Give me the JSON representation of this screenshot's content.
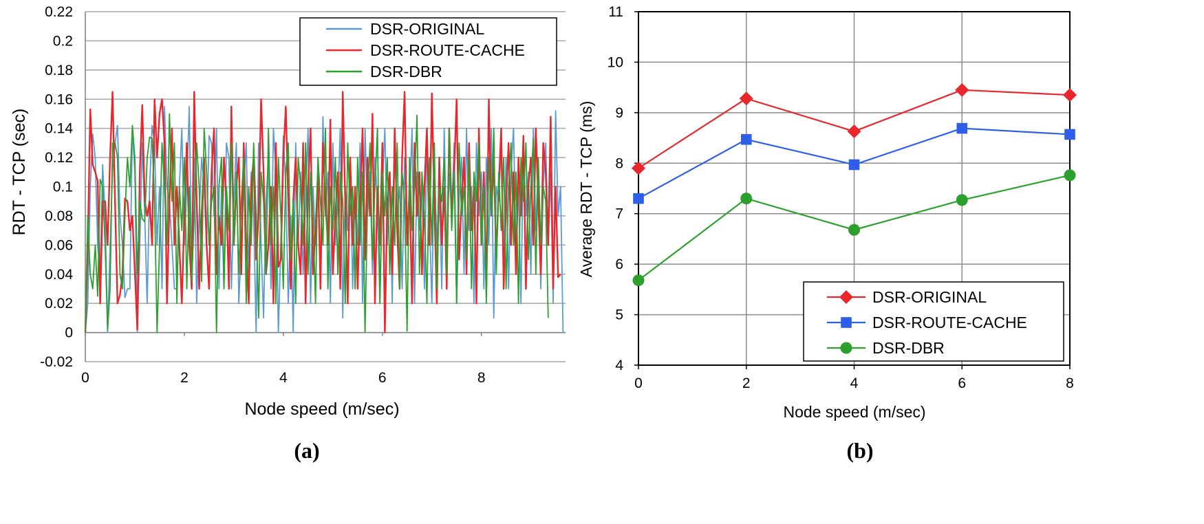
{
  "chart_data": [
    {
      "type": "line",
      "caption": "(a)",
      "xlabel": "Node speed (m/sec)",
      "ylabel": "RDT - TCP (sec)",
      "xlim": [
        0,
        9.7
      ],
      "ylim": [
        -0.02,
        0.22
      ],
      "x_ticks": [
        "0",
        "2",
        "4",
        "6",
        "8"
      ],
      "y_ticks": [
        "-0.02",
        "0",
        "0.02",
        "0.04",
        "0.06",
        "0.08",
        "0.1",
        "0.12",
        "0.14",
        "0.16",
        "0.18",
        "0.2",
        "0.22"
      ],
      "grid": "horizontal",
      "legend_position": "top-right",
      "series": [
        {
          "name": "DSR-ORIGINAL",
          "color": "#5b9bd5",
          "x_start": 0,
          "x_step": 0.05,
          "values": [
            0.0,
            0.02,
            0.1,
            0.136,
            0.12,
            0.06,
            0.04,
            0.115,
            0.08,
            0.0,
            0.06,
            0.11,
            0.13,
            0.142,
            0.08,
            0.06,
            0.024,
            0.03,
            0.03,
            0.14,
            0.11,
            0.0,
            0.06,
            0.13,
            0.08,
            0.02,
            0.1,
            0.142,
            0.13,
            0.06,
            0.1,
            0.03,
            0.155,
            0.1,
            0.09,
            0.06,
            0.03,
            0.03,
            0.1,
            0.14,
            0.06,
            0.1,
            0.155,
            0.04,
            0.12,
            0.02,
            0.08,
            0.12,
            0.1,
            0.06,
            0.135,
            0.13,
            0.08,
            0.14,
            0.03,
            0.1,
            0.03,
            0.13,
            0.12,
            0.03,
            0.09,
            0.13,
            0.02,
            0.06,
            0.1,
            0.13,
            0.04,
            0.11,
            0.08,
            0.0,
            0.13,
            0.06,
            0.01,
            0.09,
            0.12,
            0.03,
            0.14,
            0.11,
            0.0,
            0.06,
            0.135,
            0.1,
            0.02,
            0.08,
            0.0,
            0.13,
            0.06,
            0.11,
            0.04,
            0.09,
            0.14,
            0.02,
            0.1,
            0.06,
            0.12,
            0.03,
            0.148,
            0.08,
            0.11,
            0.02,
            0.13,
            0.06,
            0.09,
            0.14,
            0.01,
            0.1,
            0.07,
            0.12,
            0.03,
            0.1,
            0.06,
            0.13,
            0.02,
            0.14,
            0.08,
            0.11,
            0.04,
            0.12,
            0.09,
            0.02,
            0.1,
            0.14,
            0.06,
            0.11,
            0.02,
            0.13,
            0.08,
            0.1,
            0.03,
            0.12,
            0.06,
            0.09,
            0.14,
            0.02,
            0.11,
            0.07,
            0.1,
            0.03,
            0.14,
            0.08,
            0.02,
            0.12,
            0.06,
            0.1,
            0.03,
            0.14,
            0.05,
            0.11,
            0.08,
            0.13,
            0.02,
            0.09,
            0.12,
            0.04,
            0.14,
            0.07,
            0.1,
            0.02,
            0.13,
            0.08,
            0.11,
            0.03,
            0.12,
            0.06,
            0.14,
            0.01,
            0.1,
            0.09,
            0.13,
            0.05,
            0.12,
            0.03,
            0.11,
            0.14,
            0.06,
            0.1,
            0.02,
            0.13,
            0.08,
            0.11,
            0.04,
            0.14,
            0.07,
            0.12,
            0.03,
            0.1,
            0.13,
            0.06,
            0.11,
            0.02,
            0.152,
            0.08,
            0.1,
            0.0,
            0.09
          ]
        },
        {
          "name": "DSR-ROUTE-CACHE",
          "color": "#e8262b",
          "x_start": 0,
          "x_step": 0.05,
          "values": [
            0.0,
            0.06,
            0.153,
            0.115,
            0.11,
            0.104,
            0.02,
            0.09,
            0.09,
            0.06,
            0.12,
            0.165,
            0.09,
            0.02,
            0.026,
            0.04,
            0.092,
            0.09,
            0.07,
            0.08,
            0.042,
            0.002,
            0.11,
            0.156,
            0.09,
            0.08,
            0.09,
            0.06,
            0.16,
            0.12,
            0.15,
            0.16,
            0.13,
            0.02,
            0.09,
            0.14,
            0.06,
            0.1,
            0.06,
            0.02,
            0.08,
            0.13,
            0.06,
            0.03,
            0.165,
            0.09,
            0.03,
            0.08,
            0.12,
            0.06,
            0.03,
            0.11,
            0.14,
            0.04,
            0.08,
            0.06,
            0.12,
            0.09,
            0.03,
            0.155,
            0.06,
            0.1,
            0.12,
            0.04,
            0.13,
            0.06,
            0.02,
            0.1,
            0.12,
            0.05,
            0.08,
            0.16,
            0.11,
            0.04,
            0.06,
            0.1,
            0.02,
            0.13,
            0.045,
            0.05,
            0.12,
            0.155,
            0.09,
            0.03,
            0.09,
            0.12,
            0.06,
            0.04,
            0.13,
            0.02,
            0.1,
            0.14,
            0.04,
            0.07,
            0.11,
            0.03,
            0.13,
            0.09,
            0.06,
            0.146,
            0.04,
            0.08,
            0.11,
            0.03,
            0.165,
            0.09,
            0.02,
            0.12,
            0.06,
            0.1,
            0.03,
            0.09,
            0.14,
            0.05,
            0.12,
            0.08,
            0.15,
            0.02,
            0.1,
            0.06,
            0.13,
            0.0,
            0.09,
            0.11,
            0.04,
            0.14,
            0.07,
            0.03,
            0.12,
            0.165,
            0.06,
            0.1,
            0.02,
            0.13,
            0.08,
            0.11,
            0.04,
            0.1,
            0.14,
            0.06,
            0.164,
            0.09,
            0.02,
            0.12,
            0.06,
            0.1,
            0.03,
            0.14,
            0.08,
            0.11,
            0.16,
            0.05,
            0.09,
            0.12,
            0.04,
            0.13,
            0.07,
            0.1,
            0.02,
            0.14,
            0.06,
            0.11,
            0.03,
            0.16,
            0.08,
            0.12,
            0.05,
            0.1,
            0.14,
            0.03,
            0.09,
            0.13,
            0.06,
            0.11,
            0.04,
            0.12,
            0.08,
            0.135,
            0.03,
            0.1,
            0.12,
            0.06,
            0.14,
            0.09,
            0.04,
            0.13,
            0.11,
            0.06,
            0.148,
            0.03,
            0.1,
            0.038,
            0.04
          ]
        },
        {
          "name": "DSR-DBR",
          "color": "#2ca02c",
          "x_start": 0,
          "x_step": 0.05,
          "values": [
            0.0,
            0.08,
            0.04,
            0.03,
            0.06,
            0.025,
            0.105,
            0.1,
            0.06,
            0.002,
            0.03,
            0.13,
            0.13,
            0.12,
            0.04,
            0.03,
            0.08,
            0.12,
            0.1,
            0.142,
            0.12,
            0.04,
            0.09,
            0.078,
            0.076,
            0.12,
            0.134,
            0.133,
            0.09,
            0.0,
            0.06,
            0.13,
            0.1,
            0.06,
            0.15,
            0.09,
            0.13,
            0.02,
            0.1,
            0.07,
            0.12,
            0.03,
            0.1,
            0.035,
            0.08,
            0.13,
            0.1,
            0.035,
            0.14,
            0.11,
            0.06,
            0.09,
            0.1,
            0.0,
            0.1,
            0.12,
            0.03,
            0.1,
            0.07,
            0.13,
            0.06,
            0.11,
            0.04,
            0.09,
            0.12,
            0.02,
            0.1,
            0.06,
            0.13,
            0.08,
            0.01,
            0.11,
            0.09,
            0.04,
            0.14,
            0.06,
            0.1,
            0.02,
            0.12,
            0.08,
            0.03,
            0.11,
            0.13,
            0.05,
            0.09,
            0.02,
            0.12,
            0.1,
            0.06,
            0.13,
            0.04,
            0.11,
            0.08,
            0.02,
            0.12,
            0.09,
            0.06,
            0.14,
            0.03,
            0.1,
            0.07,
            0.12,
            0.04,
            0.11,
            0.09,
            0.02,
            0.13,
            0.08,
            0.1,
            0.03,
            0.12,
            0.06,
            0.11,
            0.0,
            0.09,
            0.13,
            0.05,
            0.1,
            0.14,
            0.02,
            0.11,
            0.08,
            0.12,
            0.04,
            0.1,
            0.06,
            0.13,
            0.03,
            0.11,
            0.09,
            0.001,
            0.12,
            0.07,
            0.1,
            0.149,
            0.04,
            0.11,
            0.08,
            0.02,
            0.12,
            0.06,
            0.13,
            0.03,
            0.1,
            0.09,
            0.12,
            0.04,
            0.14,
            0.07,
            0.11,
            0.02,
            0.13,
            0.08,
            0.1,
            0.05,
            0.12,
            0.03,
            0.11,
            0.09,
            0.13,
            0.06,
            0.1,
            0.02,
            0.12,
            0.08,
            0.14,
            0.04,
            0.11,
            0.07,
            0.12,
            0.03,
            0.1,
            0.13,
            0.06,
            0.11,
            0.02,
            0.12,
            0.09,
            0.13,
            0.05,
            0.1,
            0.133,
            0.04,
            0.12,
            0.06,
            0.1,
            0.09,
            0.01
          ]
        }
      ]
    },
    {
      "type": "line",
      "caption": "(b)",
      "xlabel": "Node speed (m/sec)",
      "ylabel": "Average RDT - TCP (ms)",
      "x": [
        0,
        2,
        4,
        6,
        8
      ],
      "xlim": [
        0,
        8
      ],
      "ylim": [
        4,
        11
      ],
      "x_ticks": [
        "0",
        "2",
        "4",
        "6",
        "8"
      ],
      "y_ticks": [
        "4",
        "5",
        "6",
        "7",
        "8",
        "9",
        "10",
        "11"
      ],
      "grid": "both",
      "legend_position": "bottom-right",
      "series": [
        {
          "name": "DSR-ORIGINAL",
          "color": "#e8262b",
          "marker": "diamond",
          "values": [
            7.9,
            9.28,
            8.63,
            9.45,
            9.35
          ]
        },
        {
          "name": "DSR-ROUTE-CACHE",
          "color": "#2f5fe8",
          "marker": "square",
          "values": [
            7.3,
            8.47,
            7.97,
            8.69,
            8.57
          ]
        },
        {
          "name": "DSR-DBR",
          "color": "#2ca02c",
          "marker": "circle",
          "values": [
            5.68,
            7.3,
            6.68,
            7.27,
            7.76
          ]
        }
      ]
    }
  ]
}
